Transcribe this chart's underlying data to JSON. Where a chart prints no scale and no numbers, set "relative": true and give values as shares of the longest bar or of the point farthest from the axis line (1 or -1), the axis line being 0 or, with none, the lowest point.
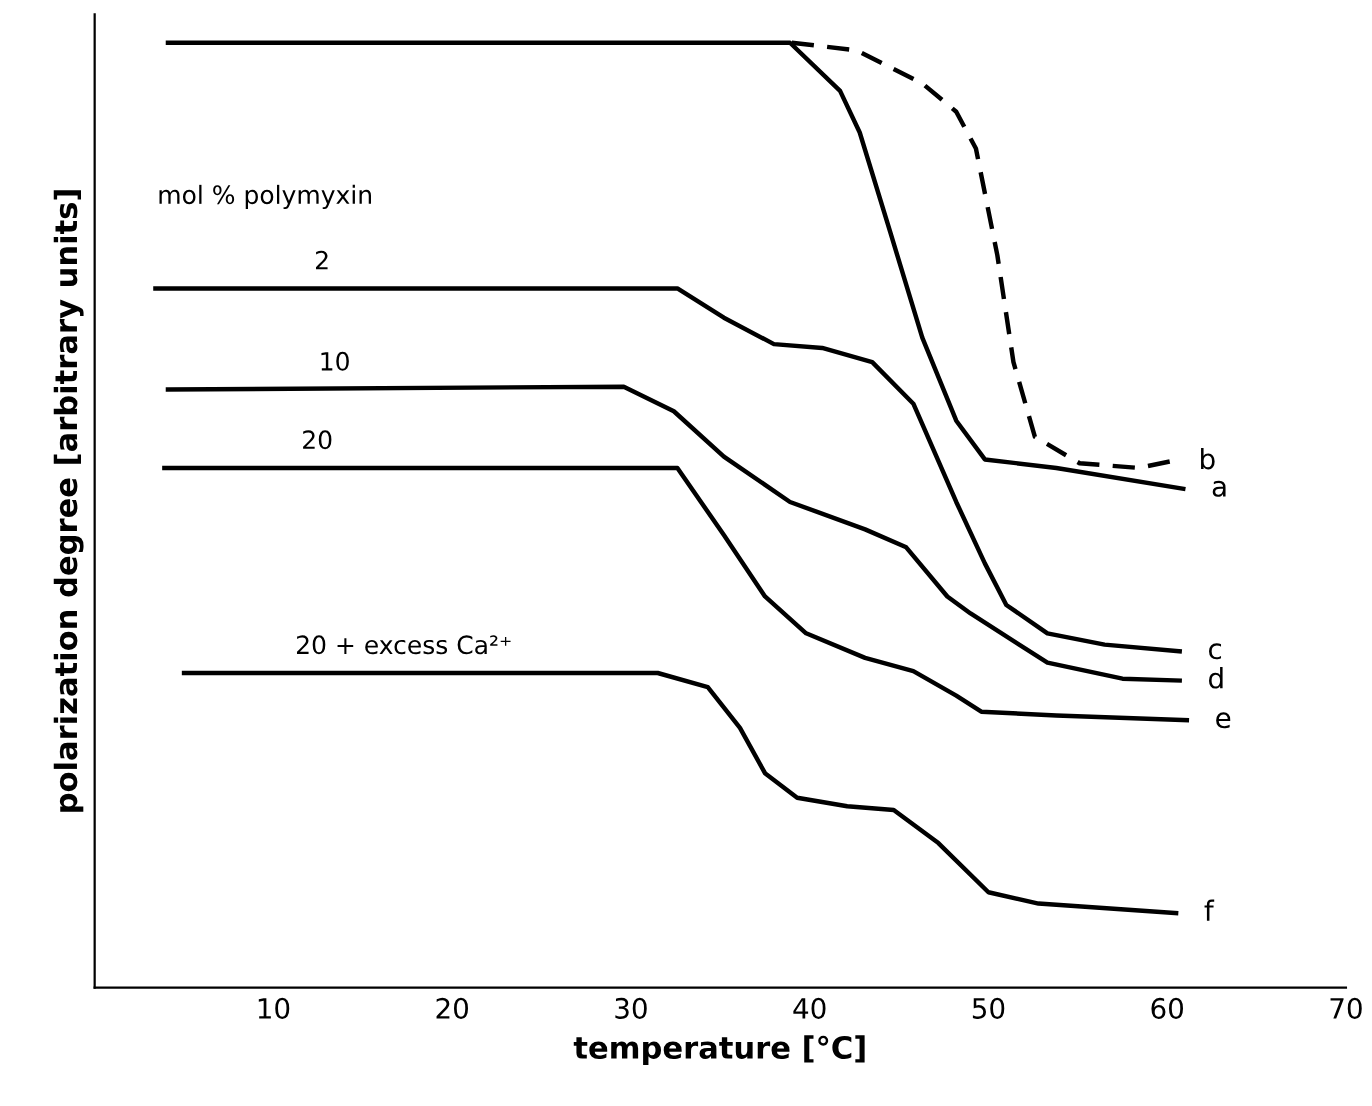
{
  "chart_data": {
    "type": "line",
    "relative": true,
    "xlabel": "temperature [°C]",
    "ylabel": "polarization degree [arbitrary units]",
    "xlim": [
      0,
      70
    ],
    "xticks": [
      10,
      20,
      30,
      40,
      50,
      60,
      70
    ],
    "grid": false,
    "legend": false,
    "marker": "none",
    "annotations": [
      "mol % polymyxin",
      "2",
      "10",
      "20",
      "20 + excess Ca²⁺"
    ],
    "series": [
      {
        "name": "a",
        "color": "#000000",
        "line_style": "solid",
        "x": [
          4.1,
          38.9,
          41.7,
          42.8,
          44.5,
          46.3,
          48.2,
          49.8,
          53.8,
          60.9
        ],
        "values": [
          1.0,
          1.0,
          0.949,
          0.905,
          0.8,
          0.688,
          0.6,
          0.559,
          0.55,
          0.528
        ]
      },
      {
        "name": "b",
        "color": "#000000",
        "line_style": "dashed",
        "x": [
          39.0,
          42.6,
          46.3,
          48.2,
          49.3,
          50.5,
          51.4,
          52.6,
          55.1,
          58.4,
          60.2
        ],
        "values": [
          1.0,
          0.992,
          0.957,
          0.927,
          0.888,
          0.775,
          0.662,
          0.583,
          0.555,
          0.55,
          0.557
        ]
      },
      {
        "name": "c",
        "color": "#000000",
        "line_style": "solid",
        "x": [
          3.4,
          32.6,
          35.2,
          38.0,
          40.7,
          43.5,
          45.8,
          48.2,
          49.8,
          51.0,
          53.3,
          56.5,
          60.7
        ],
        "values": [
          0.74,
          0.74,
          0.709,
          0.681,
          0.677,
          0.662,
          0.618,
          0.514,
          0.449,
          0.405,
          0.375,
          0.363,
          0.356
        ]
      },
      {
        "name": "d",
        "color": "#000000",
        "line_style": "solid",
        "x": [
          4.1,
          29.6,
          32.4,
          35.2,
          38.9,
          43.1,
          45.4,
          47.7,
          49.0,
          53.3,
          57.5,
          60.7
        ],
        "values": [
          0.633,
          0.636,
          0.61,
          0.562,
          0.514,
          0.485,
          0.466,
          0.414,
          0.396,
          0.344,
          0.327,
          0.325
        ]
      },
      {
        "name": "e",
        "color": "#000000",
        "line_style": "solid",
        "x": [
          3.9,
          32.6,
          35.2,
          37.5,
          39.8,
          43.1,
          45.8,
          48.2,
          49.6,
          53.8,
          61.1
        ],
        "values": [
          0.55,
          0.55,
          0.479,
          0.414,
          0.375,
          0.349,
          0.335,
          0.309,
          0.292,
          0.288,
          0.283
        ]
      },
      {
        "name": "f",
        "color": "#000000",
        "line_style": "solid",
        "x": [
          5.0,
          31.5,
          34.3,
          36.1,
          37.5,
          39.3,
          42.1,
          44.7,
          47.2,
          50.0,
          52.8,
          60.5
        ],
        "values": [
          0.333,
          0.333,
          0.318,
          0.275,
          0.227,
          0.201,
          0.192,
          0.188,
          0.153,
          0.101,
          0.089,
          0.079
        ]
      }
    ]
  }
}
